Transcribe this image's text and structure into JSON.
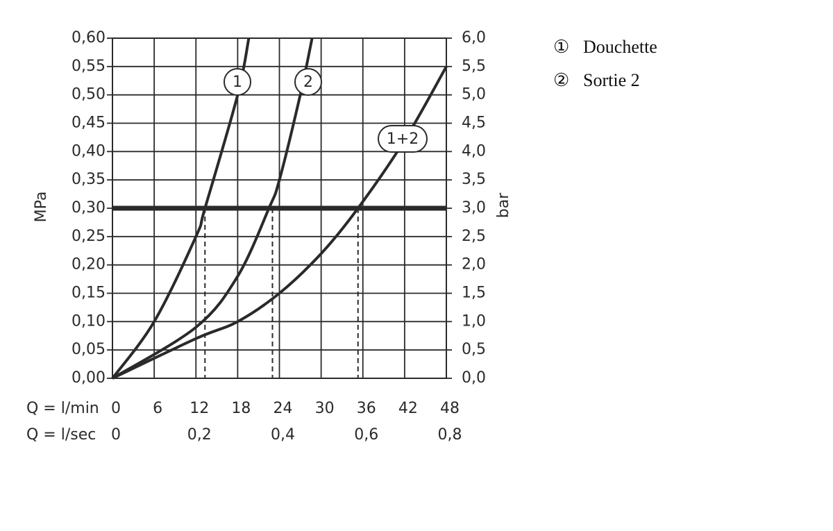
{
  "chart_data": {
    "type": "line",
    "y_label": "MPa",
    "y2_label": "bar",
    "x_row_label": "Q = l/min",
    "x2_row_label": "Q = l/sec",
    "xlim": [
      0,
      48
    ],
    "xticks": [
      0,
      6,
      12,
      18,
      24,
      30,
      36,
      42,
      48
    ],
    "x2lim": [
      0,
      0.8
    ],
    "x2ticks": [
      0,
      {
        "value": 0.2,
        "label": "0,2"
      },
      {
        "value": 0.4,
        "label": "0,4"
      },
      {
        "value": 0.6,
        "label": "0,6"
      },
      {
        "value": 0.8,
        "label": "0,8"
      }
    ],
    "ylim": [
      0,
      0.6
    ],
    "yticks": [
      {
        "value": 0,
        "label": "0,00"
      },
      {
        "value": 0.05,
        "label": "0,05"
      },
      {
        "value": 0.1,
        "label": "0,10"
      },
      {
        "value": 0.15,
        "label": "0,15"
      },
      {
        "value": 0.2,
        "label": "0,20"
      },
      {
        "value": 0.25,
        "label": "0,25"
      },
      {
        "value": 0.3,
        "label": "0,30"
      },
      {
        "value": 0.35,
        "label": "0,35"
      },
      {
        "value": 0.4,
        "label": "0,40"
      },
      {
        "value": 0.45,
        "label": "0,45"
      },
      {
        "value": 0.5,
        "label": "0,50"
      },
      {
        "value": 0.55,
        "label": "0,55"
      },
      {
        "value": 0.6,
        "label": "0,60"
      }
    ],
    "y2lim": [
      0,
      6
    ],
    "y2ticks": [
      {
        "value": 0,
        "label": "0,0"
      },
      {
        "value": 0.5,
        "label": "0,5"
      },
      {
        "value": 1,
        "label": "1,0"
      },
      {
        "value": 1.5,
        "label": "1,5"
      },
      {
        "value": 2,
        "label": "2,0"
      },
      {
        "value": 2.5,
        "label": "2,5"
      },
      {
        "value": 3,
        "label": "3,0"
      },
      {
        "value": 3.5,
        "label": "3,5"
      },
      {
        "value": 4,
        "label": "4,0"
      },
      {
        "value": 4.5,
        "label": "4,5"
      },
      {
        "value": 5,
        "label": "5,0"
      },
      {
        "value": 5.5,
        "label": "5,5"
      },
      {
        "value": 6,
        "label": "6,0"
      }
    ],
    "grid": true,
    "color": "#2a2a2a",
    "reference_line": 0.3,
    "drop_lines": [
      13.3,
      23,
      35.3
    ],
    "series": [
      {
        "name": "1",
        "x": [
          0,
          6,
          12,
          13.3,
          18,
          19.6
        ],
        "values": [
          0,
          0.1,
          0.25,
          0.3,
          0.5,
          0.6
        ]
      },
      {
        "name": "2",
        "x": [
          0,
          12,
          18,
          22.5,
          24,
          27,
          28.7
        ],
        "values": [
          0,
          0.09,
          0.18,
          0.3,
          0.35,
          0.5,
          0.6
        ]
      },
      {
        "name": "1+2",
        "x": [
          0,
          12,
          18,
          24,
          30,
          35.3,
          42,
          48
        ],
        "values": [
          0,
          0.07,
          0.1,
          0.15,
          0.22,
          0.3,
          0.42,
          0.55
        ]
      }
    ],
    "legend": [
      {
        "symbol": "①",
        "label": "Douchette"
      },
      {
        "symbol": "②",
        "label": "Sortie 2"
      }
    ]
  }
}
